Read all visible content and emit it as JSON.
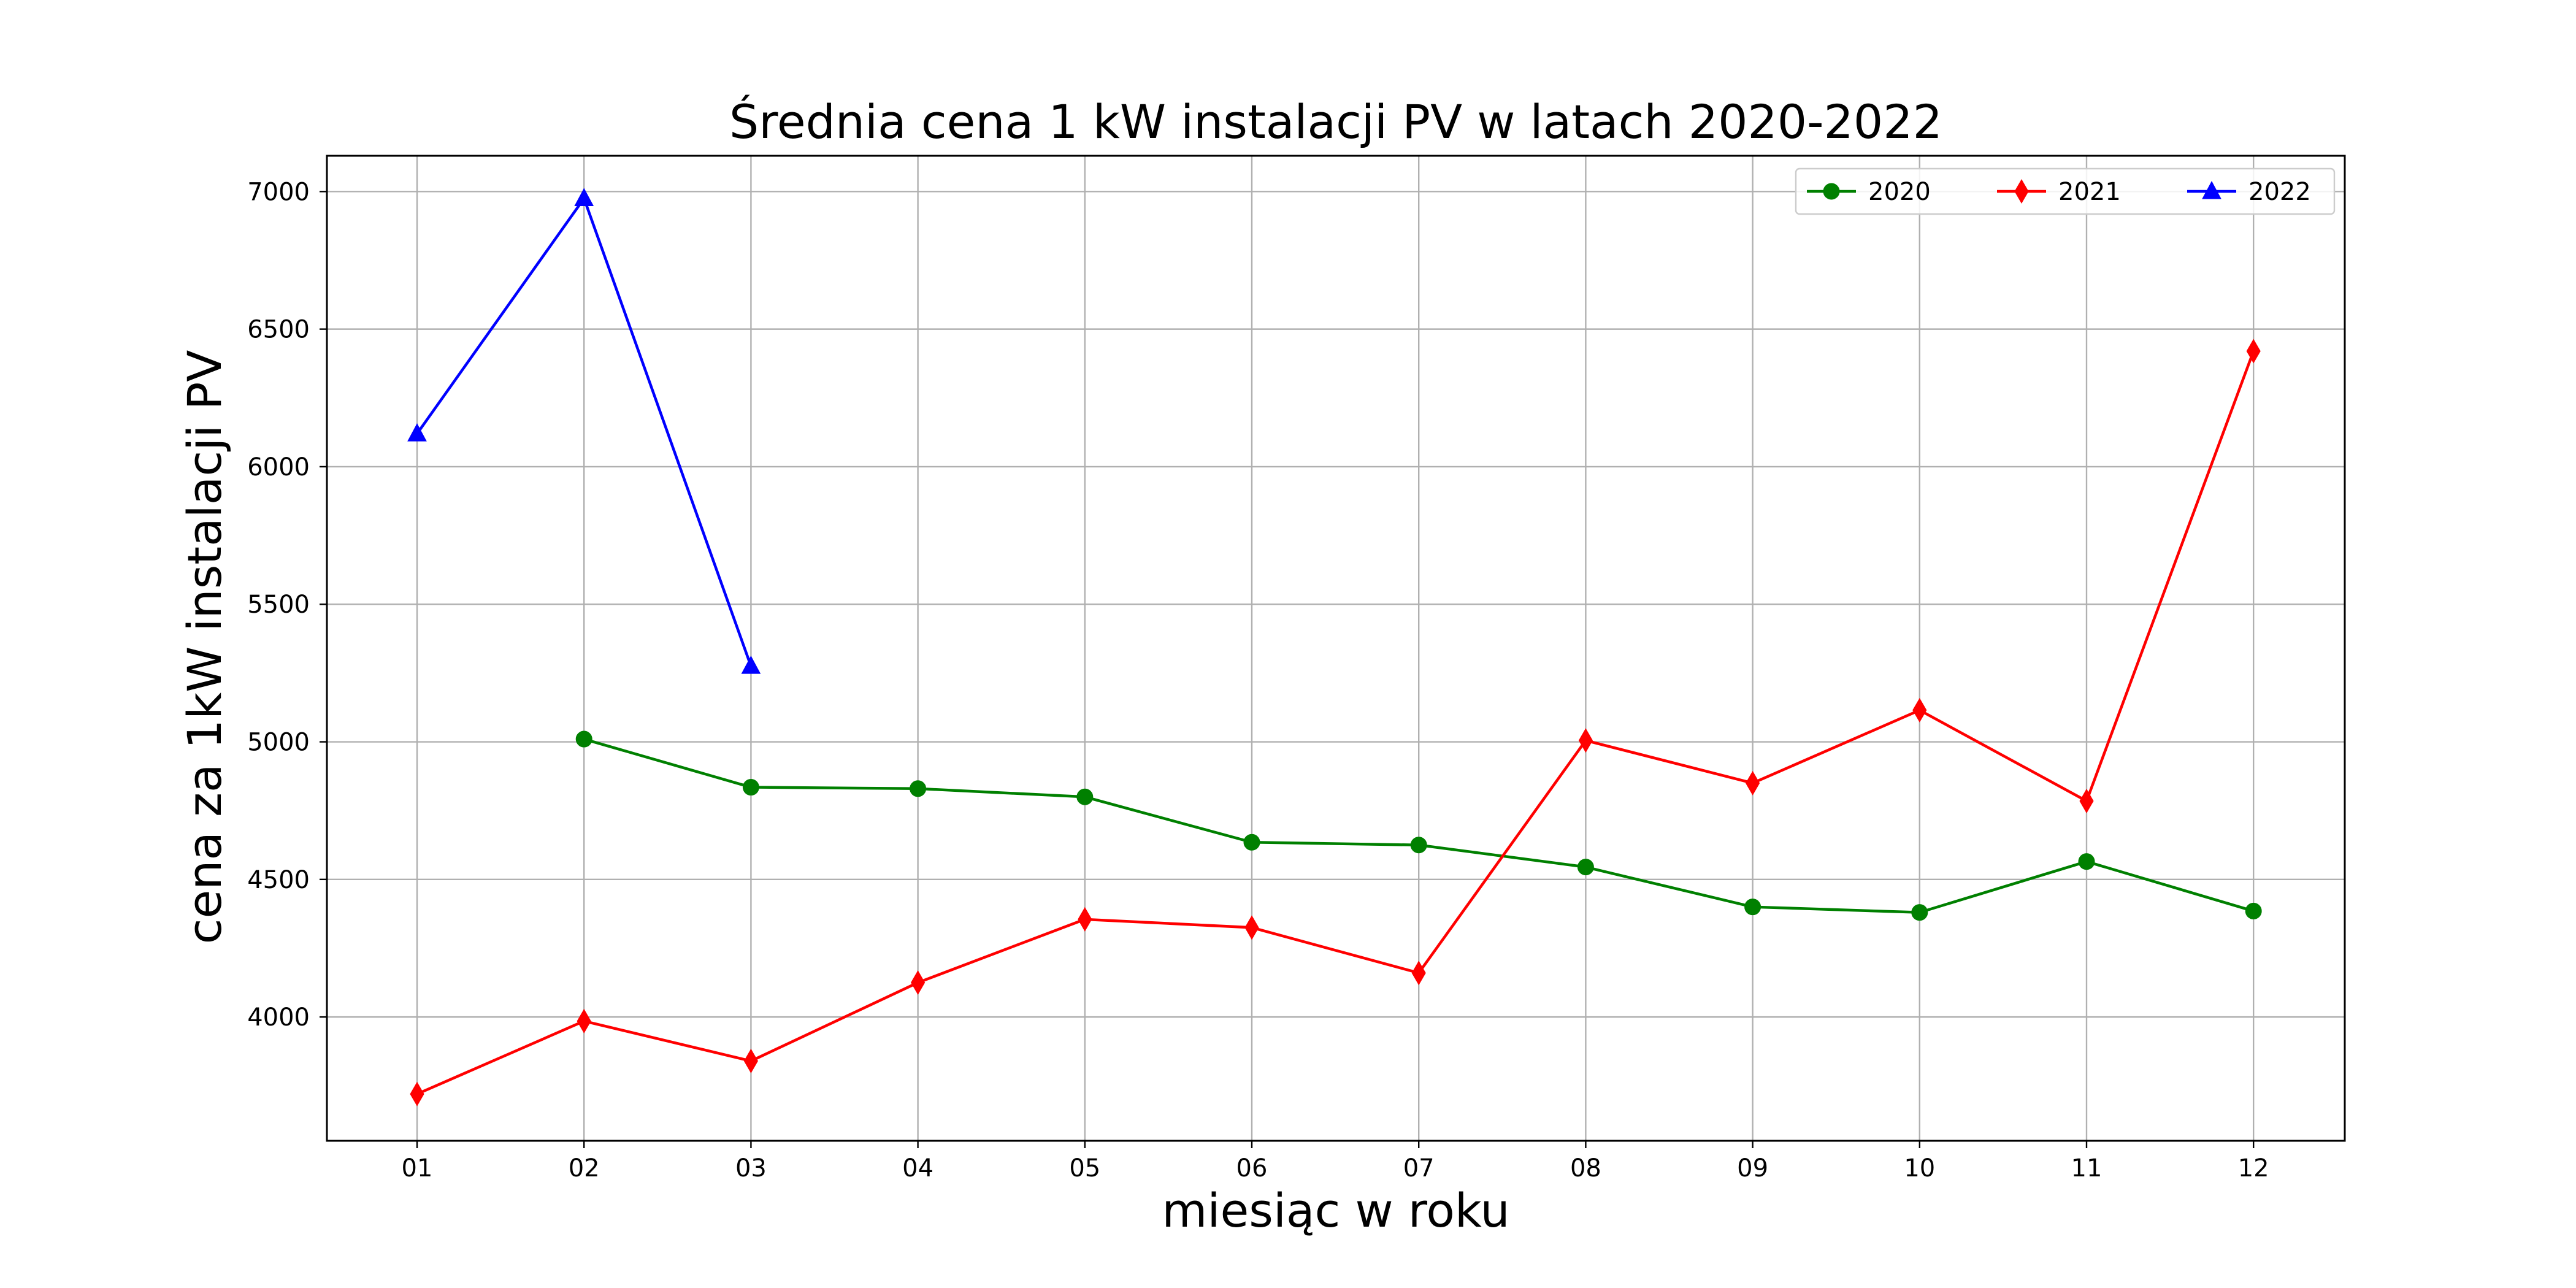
{
  "chart_data": {
    "type": "line",
    "title": "Średnia cena 1 kW instalacji PV w latach 2020-2022",
    "xlabel": "miesiąc w roku",
    "ylabel": "cena za 1kW instalacji PV",
    "x": [
      "01",
      "02",
      "03",
      "04",
      "05",
      "06",
      "07",
      "08",
      "09",
      "10",
      "11",
      "12"
    ],
    "ylim": [
      3550,
      7130
    ],
    "yticks": [
      4000,
      4500,
      5000,
      5500,
      6000,
      6500,
      7000
    ],
    "grid": true,
    "legend": "top-right",
    "series": [
      {
        "name": "2020",
        "color": "#008000",
        "marker": "circle",
        "values": [
          null,
          5010,
          4835,
          4830,
          4800,
          4635,
          4625,
          4545,
          4400,
          4380,
          4565,
          4385
        ]
      },
      {
        "name": "2021",
        "color": "#ff0000",
        "marker": "diamond",
        "values": [
          3720,
          3985,
          3840,
          4125,
          4355,
          4325,
          4160,
          5005,
          4850,
          5115,
          4785,
          6420
        ]
      },
      {
        "name": "2022",
        "color": "#0000ff",
        "marker": "triangle",
        "values": [
          6120,
          6975,
          5275,
          null,
          null,
          null,
          null,
          null,
          null,
          null,
          null,
          null
        ]
      }
    ]
  }
}
